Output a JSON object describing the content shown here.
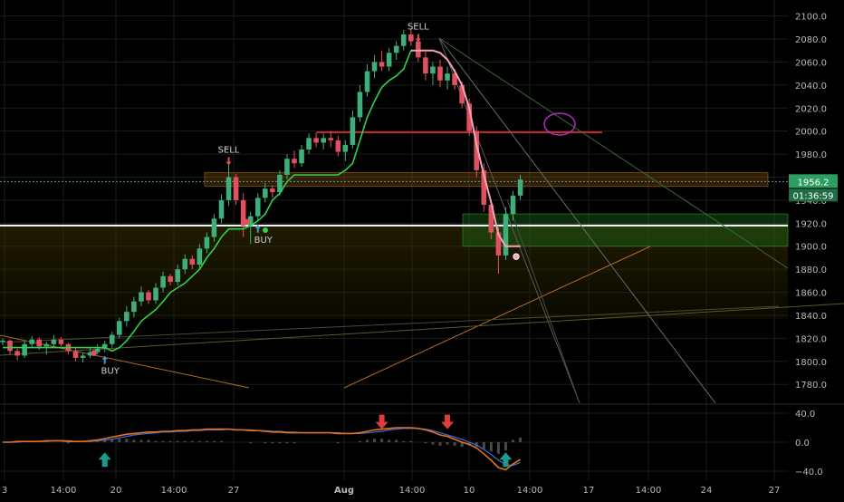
{
  "chart_data": {
    "type": "candlestick",
    "theme_colors": {
      "background": "#000000",
      "grid": "#1c1c1c",
      "up": "#3fae7a",
      "down": "#e0505f",
      "trail_up": "#34d04a",
      "trail_down": "#f4a3b8",
      "support_line": "#ffffff",
      "resistance_line": "#c0282e",
      "zone_orange": "#8a5a10",
      "zone_green": "#1f7a1f",
      "macd": "#e3721f",
      "signal": "#3d6fd6",
      "buy_arrow": "#1a9b8c",
      "sell_arrow": "#e23b3b",
      "price_tag": "#2e9e62"
    },
    "x_ticks": [
      "3",
      "14:00",
      "20",
      "14:00",
      "27",
      "Aug",
      "14:00",
      "10",
      "14:00",
      "17",
      "14:00",
      "24",
      "27"
    ],
    "y_ticks": [
      "2100.0",
      "2080.0",
      "2060.0",
      "2040.0",
      "2020.0",
      "2000.0",
      "1980.0",
      "1960.0",
      "1940.0",
      "1920.0",
      "1900.0",
      "1880.0",
      "1860.0",
      "1840.0",
      "1820.0",
      "1800.0",
      "1780.0"
    ],
    "ylim": [
      1766,
      2106
    ],
    "current_price": "1956.2",
    "countdown": "01:36:59",
    "horizontal_levels": {
      "support": 1918,
      "resistance": 1999
    },
    "zones": [
      {
        "name": "orange-zone",
        "low": 1952,
        "high": 1964
      },
      {
        "name": "green-zone",
        "low": 1900,
        "high": 1928
      }
    ],
    "candles": [
      [
        1817,
        1820,
        1814,
        1818
      ],
      [
        1818,
        1819,
        1806,
        1809
      ],
      [
        1809,
        1811,
        1801,
        1805
      ],
      [
        1805,
        1818,
        1803,
        1815
      ],
      [
        1815,
        1822,
        1812,
        1819
      ],
      [
        1819,
        1821,
        1810,
        1813
      ],
      [
        1813,
        1817,
        1806,
        1815
      ],
      [
        1815,
        1823,
        1812,
        1819
      ],
      [
        1819,
        1821,
        1813,
        1815
      ],
      [
        1815,
        1816,
        1806,
        1809
      ],
      [
        1809,
        1812,
        1800,
        1803
      ],
      [
        1803,
        1807,
        1799,
        1805
      ],
      [
        1805,
        1812,
        1803,
        1808
      ],
      [
        1808,
        1815,
        1806,
        1811
      ],
      [
        1811,
        1818,
        1808,
        1815
      ],
      [
        1815,
        1826,
        1812,
        1823
      ],
      [
        1823,
        1838,
        1820,
        1835
      ],
      [
        1835,
        1848,
        1830,
        1843
      ],
      [
        1843,
        1856,
        1838,
        1852
      ],
      [
        1852,
        1865,
        1848,
        1860
      ],
      [
        1860,
        1862,
        1850,
        1853
      ],
      [
        1853,
        1868,
        1850,
        1864
      ],
      [
        1864,
        1878,
        1860,
        1874
      ],
      [
        1874,
        1876,
        1866,
        1869
      ],
      [
        1869,
        1884,
        1866,
        1880
      ],
      [
        1880,
        1893,
        1876,
        1889
      ],
      [
        1889,
        1892,
        1880,
        1884
      ],
      [
        1884,
        1902,
        1880,
        1898
      ],
      [
        1898,
        1912,
        1894,
        1908
      ],
      [
        1908,
        1928,
        1904,
        1924
      ],
      [
        1924,
        1945,
        1920,
        1940
      ],
      [
        1940,
        1975,
        1935,
        1960
      ],
      [
        1960,
        1963,
        1936,
        1940
      ],
      [
        1940,
        1946,
        1908,
        1918
      ],
      [
        1918,
        1930,
        1902,
        1926
      ],
      [
        1926,
        1946,
        1922,
        1942
      ],
      [
        1942,
        1955,
        1938,
        1950
      ],
      [
        1950,
        1953,
        1942,
        1947
      ],
      [
        1947,
        1966,
        1944,
        1962
      ],
      [
        1962,
        1980,
        1958,
        1976
      ],
      [
        1976,
        1983,
        1968,
        1972
      ],
      [
        1972,
        1988,
        1969,
        1984
      ],
      [
        1984,
        1998,
        1980,
        1994
      ],
      [
        1994,
        1999,
        1986,
        1990
      ],
      [
        1990,
        1998,
        1984,
        1994
      ],
      [
        1994,
        2000,
        1986,
        1992
      ],
      [
        1992,
        1996,
        1978,
        1982
      ],
      [
        1982,
        1992,
        1974,
        1988
      ],
      [
        1988,
        2018,
        1985,
        2012
      ],
      [
        2012,
        2040,
        2008,
        2034
      ],
      [
        2034,
        2058,
        2030,
        2052
      ],
      [
        2052,
        2066,
        2046,
        2060
      ],
      [
        2060,
        2070,
        2052,
        2056
      ],
      [
        2056,
        2072,
        2052,
        2068
      ],
      [
        2068,
        2078,
        2062,
        2074
      ],
      [
        2074,
        2088,
        2070,
        2084
      ],
      [
        2084,
        2089,
        2074,
        2078
      ],
      [
        2078,
        2082,
        2060,
        2064
      ],
      [
        2064,
        2069,
        2044,
        2050
      ],
      [
        2050,
        2060,
        2040,
        2056
      ],
      [
        2056,
        2062,
        2038,
        2044
      ],
      [
        2044,
        2056,
        2036,
        2050
      ],
      [
        2050,
        2054,
        2036,
        2040
      ],
      [
        2040,
        2043,
        2020,
        2024
      ],
      [
        2024,
        2028,
        1996,
        2000
      ],
      [
        2000,
        2004,
        1960,
        1966
      ],
      [
        1966,
        1972,
        1930,
        1936
      ],
      [
        1936,
        1940,
        1906,
        1912
      ],
      [
        1912,
        1918,
        1876,
        1892
      ],
      [
        1892,
        1934,
        1888,
        1928
      ],
      [
        1928,
        1948,
        1922,
        1944
      ],
      [
        1944,
        1962,
        1940,
        1958
      ]
    ],
    "trail_line": [
      1812,
      1812,
      1812,
      1812,
      1812,
      1812,
      1812,
      1812,
      1812,
      1812,
      1812,
      1812,
      1812,
      1812,
      1812,
      1809,
      1812,
      1818,
      1826,
      1835,
      1840,
      1845,
      1852,
      1860,
      1864,
      1868,
      1874,
      1880,
      1890,
      1898,
      1908,
      1915,
      1915,
      1915,
      1918,
      1922,
      1928,
      1940,
      1946,
      1956,
      1962,
      1962,
      1962,
      1962,
      1962,
      1962,
      1962,
      1966,
      1972,
      1992,
      2012,
      2026,
      2038,
      2044,
      2048,
      2054,
      2070,
      2070,
      2070,
      2070,
      2068,
      2062,
      2052,
      2040,
      2020,
      1988,
      1962,
      1938,
      1910,
      1900,
      1900,
      1900
    ],
    "trail_flip_index": 56,
    "signals": [
      {
        "label": "BUY",
        "type": "buy",
        "index": 14
      },
      {
        "label": "SELL",
        "type": "sell",
        "index": 31
      },
      {
        "label": "BUY",
        "type": "buy",
        "index": 35
      },
      {
        "label": "SELL",
        "type": "sell",
        "index": 57
      }
    ],
    "indicator": {
      "y_ticks": [
        "40.0",
        "0.0",
        "−40.0"
      ],
      "ylim": [
        -50,
        50
      ],
      "macd": [
        0,
        0,
        1,
        1,
        1,
        1,
        2,
        2,
        2,
        1,
        1,
        1,
        2,
        3,
        5,
        7,
        9,
        11,
        12,
        13,
        14,
        14,
        15,
        15,
        16,
        16,
        17,
        17,
        18,
        18,
        18,
        18,
        17,
        17,
        16,
        16,
        15,
        14,
        14,
        13,
        13,
        13,
        13,
        13,
        13,
        13,
        12,
        12,
        12,
        13,
        15,
        17,
        18,
        19,
        20,
        20,
        20,
        19,
        17,
        14,
        10,
        8,
        4,
        0,
        -3,
        -8,
        -16,
        -25,
        -35,
        -38,
        -30,
        -24
      ],
      "signal": [
        0,
        0,
        0,
        1,
        1,
        1,
        1,
        2,
        2,
        2,
        1,
        1,
        1,
        2,
        3,
        4,
        6,
        8,
        10,
        11,
        12,
        13,
        14,
        14,
        15,
        15,
        16,
        16,
        17,
        17,
        17,
        18,
        17,
        17,
        17,
        16,
        16,
        15,
        15,
        14,
        14,
        13,
        13,
        13,
        13,
        13,
        13,
        12,
        12,
        12,
        13,
        14,
        15,
        17,
        18,
        19,
        19,
        19,
        18,
        16,
        13,
        10,
        7,
        4,
        0,
        -4,
        -10,
        -17,
        -25,
        -31,
        -32,
        -28
      ],
      "buy_arrows": [
        14,
        69
      ],
      "sell_arrows": [
        52,
        61
      ]
    }
  }
}
